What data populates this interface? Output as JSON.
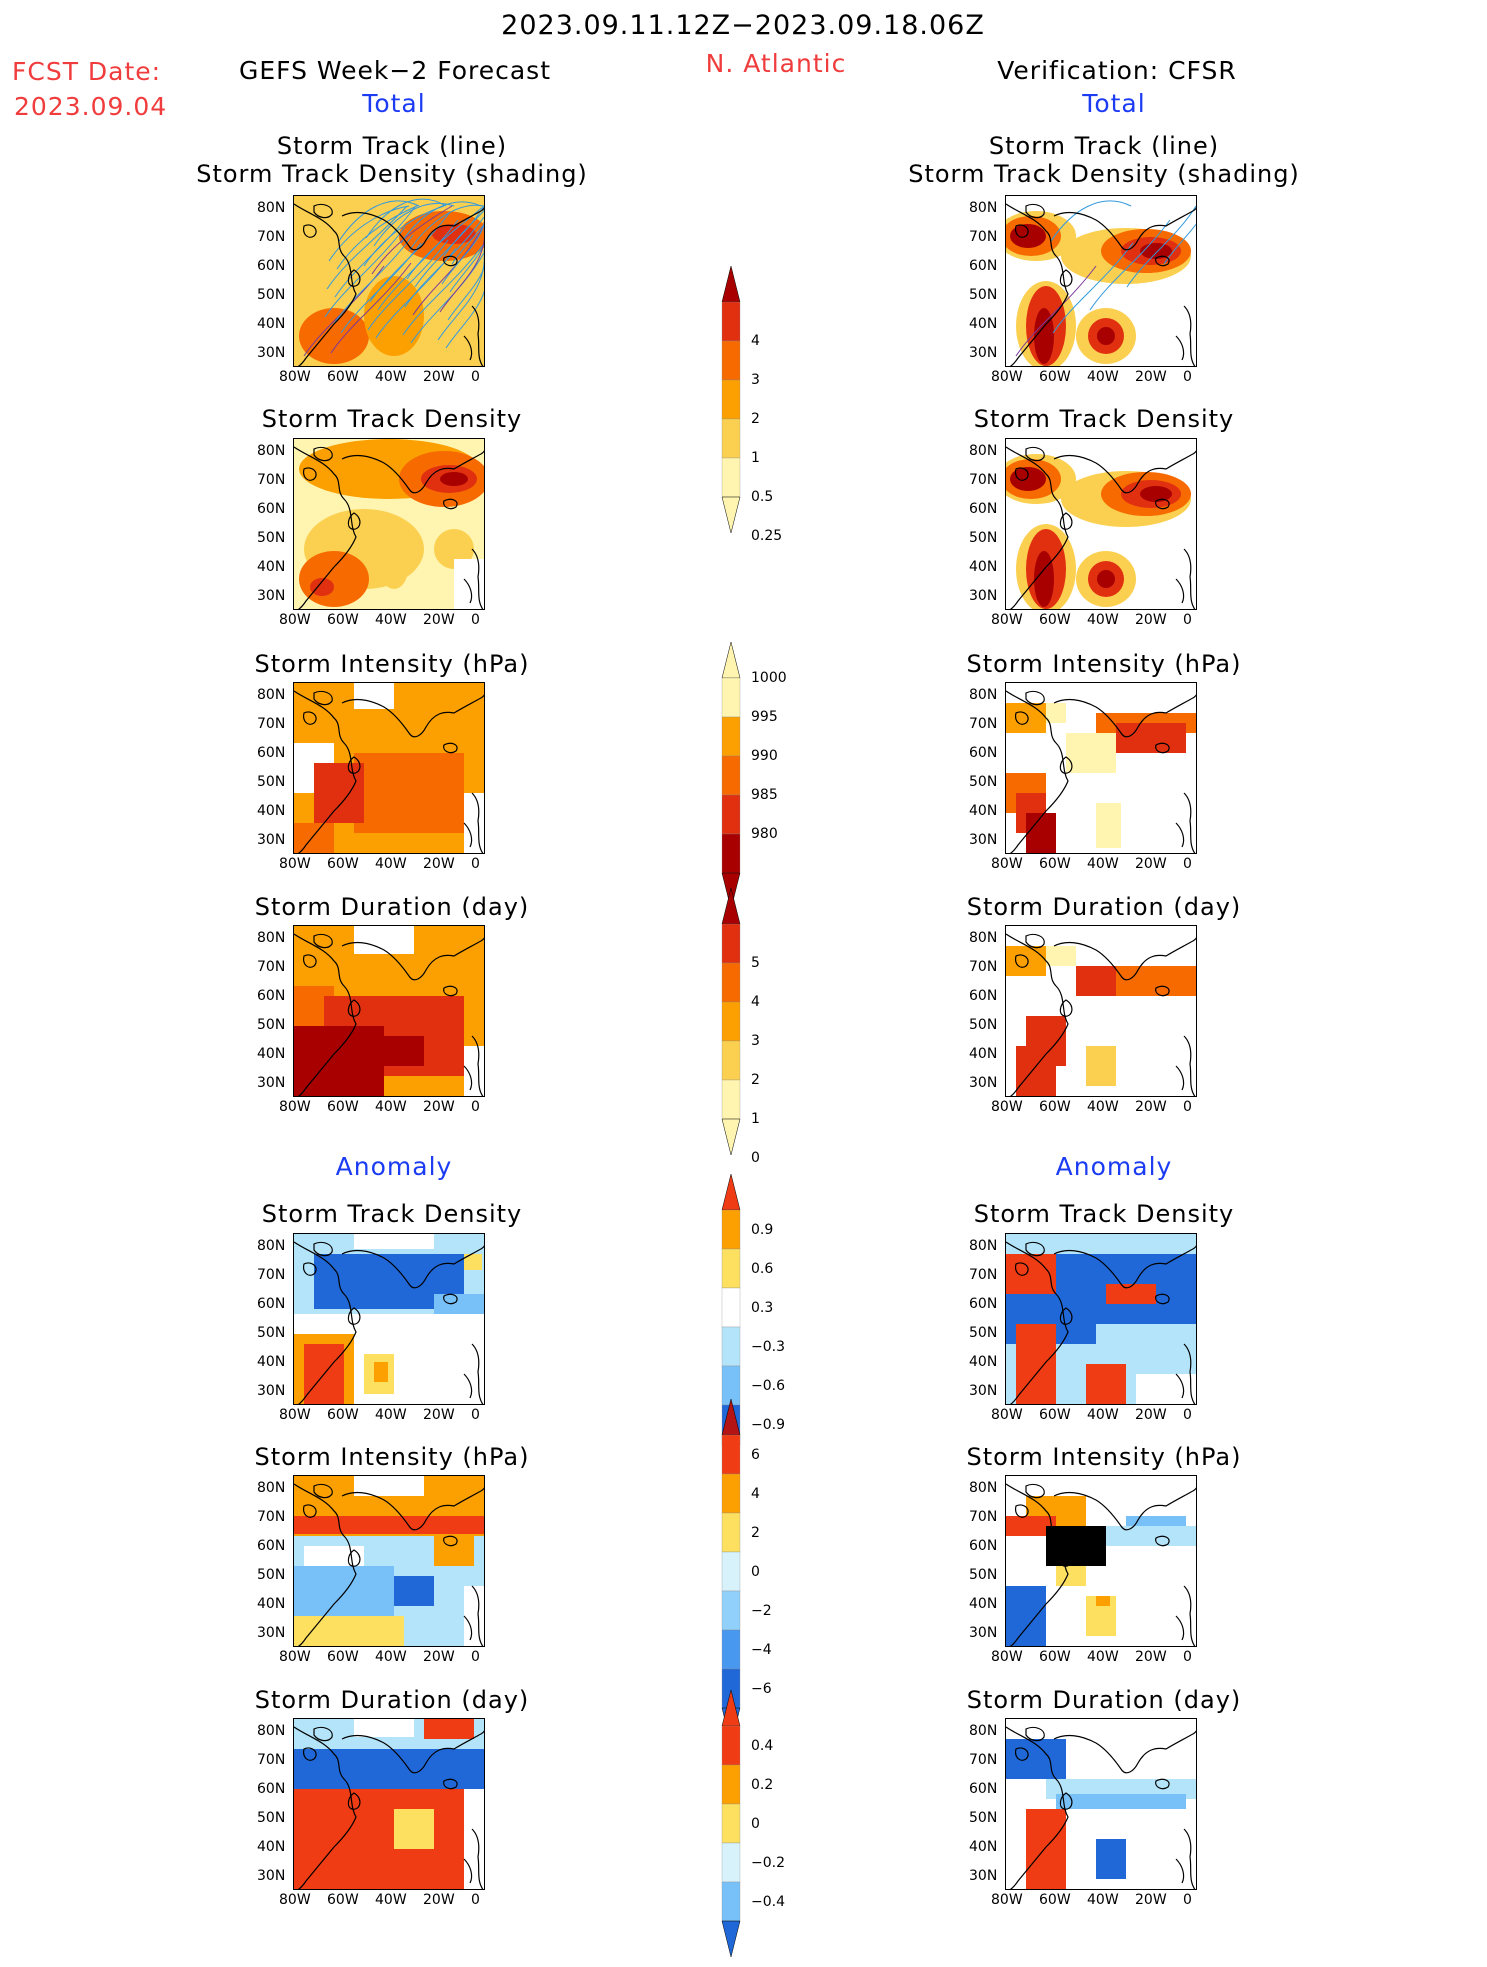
{
  "header": {
    "date_range": "2023.09.11.12Z−2023.09.18.06Z",
    "fcst_label": "FCST Date:",
    "fcst_date": "2023.09.04",
    "left_title": "GEFS Week−2 Forecast",
    "region": "N. Atlantic",
    "right_title": "Verification: CFSR",
    "left_sub": "Total",
    "right_sub": "Total",
    "left_anom": "Anomaly",
    "right_anom": "Anomaly"
  },
  "panel_titles": {
    "track_line": "Storm Track (line)",
    "track_shading": "Storm Track Density (shading)",
    "density": "Storm Track Density",
    "intensity": "Storm Intensity (hPa)",
    "duration": "Storm Duration (day)"
  },
  "axes": {
    "lat_labels": [
      "80N",
      "70N",
      "60N",
      "50N",
      "40N",
      "30N"
    ],
    "lon_labels": [
      "80W",
      "60W",
      "40W",
      "20W",
      "0"
    ]
  },
  "colorbars": {
    "density_total": {
      "labels": [
        "4",
        "3",
        "2",
        "1",
        "0.5",
        "0.25"
      ],
      "colors": [
        "#a80000",
        "#e03010",
        "#f76a00",
        "#fba000",
        "#fbd050",
        "#fff5b0"
      ]
    },
    "intensity_total": {
      "labels": [
        "1000",
        "995",
        "990",
        "985",
        "980"
      ],
      "colors": [
        "#fff5b0",
        "#fba000",
        "#f76a00",
        "#e03010",
        "#a80000"
      ]
    },
    "duration_total": {
      "labels": [
        "5",
        "4",
        "3",
        "2",
        "1",
        "0"
      ],
      "colors": [
        "#a80000",
        "#e03010",
        "#f76a00",
        "#fba000",
        "#fbd050",
        "#fff5b0"
      ]
    },
    "density_anom": {
      "labels": [
        "0.9",
        "0.6",
        "0.3",
        "−0.3",
        "−0.6",
        "−0.9"
      ],
      "colors": [
        "#f03c14",
        "#fba000",
        "#fde060",
        "#ffffff",
        "#b4e4fa",
        "#78c0f8",
        "#2068d8"
      ]
    },
    "intensity_anom": {
      "labels": [
        "6",
        "4",
        "2",
        "0",
        "−2",
        "−4",
        "−6"
      ],
      "colors": [
        "#b41414",
        "#f03c14",
        "#fba000",
        "#fde060",
        "#d8f2fc",
        "#90d0fa",
        "#4898f0",
        "#2068d8"
      ]
    },
    "duration_anom": {
      "labels": [
        "0.4",
        "0.2",
        "0",
        "−0.2",
        "−0.4"
      ],
      "colors": [
        "#f03c14",
        "#fba000",
        "#fde060",
        "#d8f2fc",
        "#78c0f8",
        "#2068d8"
      ]
    }
  },
  "legend_colors": {
    "land_line": "#000000",
    "track_line": "#3399dd",
    "track_line_dark": "#7a3a9a"
  }
}
